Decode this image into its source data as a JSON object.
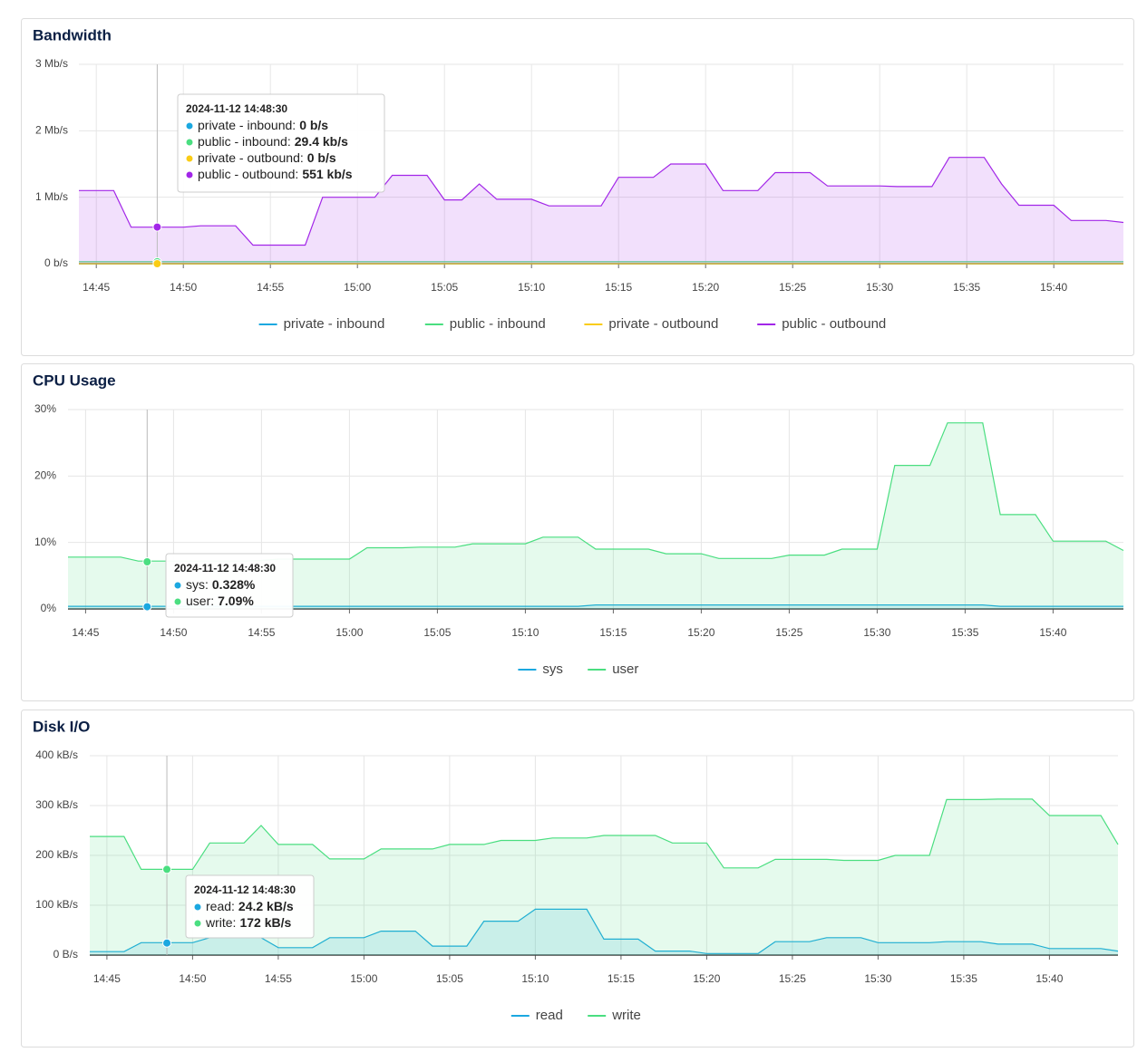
{
  "chart_data": [
    {
      "type": "line",
      "title": "Bandwidth",
      "x": [
        "14:44",
        "14:45",
        "14:46",
        "14:47",
        "14:48",
        "14:49",
        "14:50",
        "14:51",
        "14:52",
        "14:53",
        "14:54",
        "14:55",
        "14:56",
        "14:57",
        "14:58",
        "14:59",
        "15:00",
        "15:01",
        "15:02",
        "15:03",
        "15:04",
        "15:05",
        "15:06",
        "15:07",
        "15:08",
        "15:09",
        "15:10",
        "15:11",
        "15:12",
        "15:13",
        "15:14",
        "15:15",
        "15:16",
        "15:17",
        "15:18",
        "15:19",
        "15:20",
        "15:21",
        "15:22",
        "15:23",
        "15:24",
        "15:25",
        "15:26",
        "15:27",
        "15:28",
        "15:29",
        "15:30",
        "15:31",
        "15:32",
        "15:33",
        "15:34",
        "15:35",
        "15:36",
        "15:37",
        "15:38",
        "15:39",
        "15:40",
        "15:41",
        "15:42",
        "15:43",
        "15:44"
      ],
      "xlim": [
        "14:44",
        "15:44"
      ],
      "xticks": [
        "14:45",
        "14:50",
        "14:55",
        "15:00",
        "15:05",
        "15:10",
        "15:15",
        "15:20",
        "15:25",
        "15:30",
        "15:35",
        "15:40"
      ],
      "ylim": [
        0,
        3
      ],
      "yticks": [
        {
          "value": 0,
          "label": "0 b/s"
        },
        {
          "value": 1,
          "label": "1 Mb/s"
        },
        {
          "value": 2,
          "label": "2 Mb/s"
        },
        {
          "value": 3,
          "label": "3 Mb/s"
        }
      ],
      "grid": true,
      "series": [
        {
          "name": "private - inbound",
          "color": "#1ba8e0",
          "values": [
            0,
            0,
            0,
            0,
            0,
            0,
            0,
            0,
            0,
            0,
            0,
            0,
            0,
            0,
            0,
            0,
            0,
            0,
            0,
            0,
            0,
            0,
            0,
            0,
            0,
            0,
            0,
            0,
            0,
            0,
            0,
            0,
            0,
            0,
            0,
            0,
            0,
            0,
            0,
            0,
            0,
            0,
            0,
            0,
            0,
            0,
            0,
            0,
            0,
            0,
            0,
            0,
            0,
            0,
            0,
            0,
            0,
            0,
            0,
            0,
            0
          ]
        },
        {
          "name": "public - inbound",
          "color": "#4ade80",
          "values": [
            0.03,
            0.03,
            0.03,
            0.03,
            0.03,
            0.03,
            0.03,
            0.03,
            0.03,
            0.03,
            0.03,
            0.03,
            0.03,
            0.03,
            0.03,
            0.03,
            0.03,
            0.03,
            0.03,
            0.03,
            0.03,
            0.03,
            0.03,
            0.03,
            0.03,
            0.03,
            0.03,
            0.03,
            0.03,
            0.03,
            0.03,
            0.03,
            0.03,
            0.03,
            0.03,
            0.03,
            0.03,
            0.03,
            0.03,
            0.03,
            0.03,
            0.03,
            0.03,
            0.03,
            0.03,
            0.03,
            0.03,
            0.03,
            0.03,
            0.03,
            0.03,
            0.03,
            0.03,
            0.03,
            0.03,
            0.03,
            0.03,
            0.03,
            0.03,
            0.03,
            0.03
          ]
        },
        {
          "name": "private - outbound",
          "color": "#facc15",
          "values": [
            0,
            0,
            0,
            0,
            0,
            0,
            0,
            0,
            0,
            0,
            0,
            0,
            0,
            0,
            0,
            0,
            0,
            0,
            0,
            0,
            0,
            0,
            0,
            0,
            0,
            0,
            0,
            0,
            0,
            0,
            0,
            0,
            0,
            0,
            0,
            0,
            0,
            0,
            0,
            0,
            0,
            0,
            0,
            0,
            0,
            0,
            0,
            0,
            0,
            0,
            0,
            0,
            0,
            0,
            0,
            0,
            0,
            0,
            0,
            0,
            0
          ]
        },
        {
          "name": "public - outbound",
          "color": "#a226e8",
          "values": [
            1.1,
            1.1,
            1.1,
            0.55,
            0.55,
            0.55,
            0.55,
            0.57,
            0.57,
            0.57,
            0.28,
            0.28,
            0.28,
            0.28,
            1.0,
            1.0,
            1.0,
            1.0,
            1.33,
            1.33,
            1.33,
            0.96,
            0.96,
            1.2,
            0.97,
            0.97,
            0.97,
            0.87,
            0.87,
            0.87,
            0.87,
            1.3,
            1.3,
            1.3,
            1.5,
            1.5,
            1.5,
            1.1,
            1.1,
            1.1,
            1.37,
            1.37,
            1.37,
            1.17,
            1.17,
            1.17,
            1.17,
            1.16,
            1.16,
            1.16,
            1.6,
            1.6,
            1.6,
            1.2,
            0.88,
            0.88,
            0.88,
            0.65,
            0.65,
            0.65,
            0.62
          ]
        }
      ],
      "tooltip": {
        "time": "2024-11-12 14:48:30",
        "entries": [
          {
            "label": "private - inbound:",
            "value": 0,
            "value_label": "0 b/s"
          },
          {
            "label": "public - inbound:",
            "value": 0.0294,
            "value_label": "29.4 kb/s"
          },
          {
            "label": "private - outbound:",
            "value": 0,
            "value_label": "0 b/s"
          },
          {
            "label": "public - outbound:",
            "value": 0.551,
            "value_label": "551 kb/s"
          }
        ]
      }
    },
    {
      "type": "line",
      "title": "CPU Usage",
      "x": [
        "14:44",
        "14:45",
        "14:46",
        "14:47",
        "14:48",
        "14:49",
        "14:50",
        "14:51",
        "14:52",
        "14:53",
        "14:54",
        "14:55",
        "14:56",
        "14:57",
        "14:58",
        "14:59",
        "15:00",
        "15:01",
        "15:02",
        "15:03",
        "15:04",
        "15:05",
        "15:06",
        "15:07",
        "15:08",
        "15:09",
        "15:10",
        "15:11",
        "15:12",
        "15:13",
        "15:14",
        "15:15",
        "15:16",
        "15:17",
        "15:18",
        "15:19",
        "15:20",
        "15:21",
        "15:22",
        "15:23",
        "15:24",
        "15:25",
        "15:26",
        "15:27",
        "15:28",
        "15:29",
        "15:30",
        "15:31",
        "15:32",
        "15:33",
        "15:34",
        "15:35",
        "15:36",
        "15:37",
        "15:38",
        "15:39",
        "15:40",
        "15:41",
        "15:42",
        "15:43",
        "15:44"
      ],
      "xlim": [
        "14:44",
        "15:44"
      ],
      "xticks": [
        "14:45",
        "14:50",
        "14:55",
        "15:00",
        "15:05",
        "15:10",
        "15:15",
        "15:20",
        "15:25",
        "15:30",
        "15:35",
        "15:40"
      ],
      "ylim": [
        0,
        30
      ],
      "yticks": [
        {
          "value": 0,
          "label": "0%"
        },
        {
          "value": 10,
          "label": "10%"
        },
        {
          "value": 20,
          "label": "20%"
        },
        {
          "value": 30,
          "label": "30%"
        }
      ],
      "grid": true,
      "series": [
        {
          "name": "sys",
          "color": "#1ba8e0",
          "values": [
            0.4,
            0.4,
            0.4,
            0.4,
            0.4,
            0.4,
            0.4,
            0.4,
            0.4,
            0.4,
            0.4,
            0.4,
            0.4,
            0.4,
            0.4,
            0.4,
            0.4,
            0.4,
            0.4,
            0.4,
            0.4,
            0.4,
            0.4,
            0.4,
            0.4,
            0.4,
            0.4,
            0.4,
            0.4,
            0.4,
            0.6,
            0.6,
            0.6,
            0.6,
            0.6,
            0.6,
            0.6,
            0.6,
            0.6,
            0.6,
            0.6,
            0.6,
            0.6,
            0.6,
            0.6,
            0.6,
            0.6,
            0.6,
            0.6,
            0.6,
            0.6,
            0.6,
            0.6,
            0.4,
            0.4,
            0.4,
            0.4,
            0.4,
            0.4,
            0.4,
            0.4
          ]
        },
        {
          "name": "user",
          "color": "#4ade80",
          "values": [
            7.8,
            7.8,
            7.8,
            7.8,
            7.2,
            7.2,
            7.2,
            7.2,
            7.2,
            7.2,
            7.2,
            7.3,
            7.5,
            7.5,
            7.5,
            7.5,
            7.5,
            9.2,
            9.2,
            9.2,
            9.3,
            9.3,
            9.3,
            9.8,
            9.8,
            9.8,
            9.8,
            10.8,
            10.8,
            10.8,
            9.0,
            9.0,
            9.0,
            9.0,
            8.3,
            8.3,
            8.3,
            7.6,
            7.6,
            7.6,
            7.6,
            8.1,
            8.1,
            8.1,
            9.0,
            9.0,
            9.0,
            21.6,
            21.6,
            21.6,
            28,
            28,
            28,
            14.2,
            14.2,
            14.2,
            10.2,
            10.2,
            10.2,
            10.2,
            8.8
          ]
        }
      ],
      "tooltip": {
        "time": "2024-11-12 14:48:30",
        "entries": [
          {
            "label": "sys:",
            "value": 0.328,
            "value_label": "0.328%"
          },
          {
            "label": "user:",
            "value": 7.09,
            "value_label": "7.09%"
          }
        ]
      }
    },
    {
      "type": "line",
      "title": "Disk I/O",
      "x": [
        "14:44",
        "14:45",
        "14:46",
        "14:47",
        "14:48",
        "14:49",
        "14:50",
        "14:51",
        "14:52",
        "14:53",
        "14:54",
        "14:55",
        "14:56",
        "14:57",
        "14:58",
        "14:59",
        "15:00",
        "15:01",
        "15:02",
        "15:03",
        "15:04",
        "15:05",
        "15:06",
        "15:07",
        "15:08",
        "15:09",
        "15:10",
        "15:11",
        "15:12",
        "15:13",
        "15:14",
        "15:15",
        "15:16",
        "15:17",
        "15:18",
        "15:19",
        "15:20",
        "15:21",
        "15:22",
        "15:23",
        "15:24",
        "15:25",
        "15:26",
        "15:27",
        "15:28",
        "15:29",
        "15:30",
        "15:31",
        "15:32",
        "15:33",
        "15:34",
        "15:35",
        "15:36",
        "15:37",
        "15:38",
        "15:39",
        "15:40",
        "15:41",
        "15:42",
        "15:43",
        "15:44"
      ],
      "xlim": [
        "14:44",
        "15:44"
      ],
      "xticks": [
        "14:45",
        "14:50",
        "14:55",
        "15:00",
        "15:05",
        "15:10",
        "15:15",
        "15:20",
        "15:25",
        "15:30",
        "15:35",
        "15:40"
      ],
      "ylim": [
        0,
        400
      ],
      "yticks": [
        {
          "value": 0,
          "label": "0 B/s"
        },
        {
          "value": 100,
          "label": "100 kB/s"
        },
        {
          "value": 200,
          "label": "200 kB/s"
        },
        {
          "value": 300,
          "label": "300 kB/s"
        },
        {
          "value": 400,
          "label": "400 kB/s"
        }
      ],
      "grid": true,
      "series": [
        {
          "name": "read",
          "color": "#1ba8e0",
          "values": [
            7,
            7,
            7,
            25,
            25,
            25,
            25,
            35,
            35,
            35,
            35,
            15,
            15,
            15,
            35,
            35,
            35,
            48,
            48,
            48,
            18,
            18,
            18,
            68,
            68,
            68,
            92,
            92,
            92,
            92,
            32,
            32,
            32,
            8,
            8,
            8,
            3,
            3,
            3,
            3,
            27,
            27,
            27,
            35,
            35,
            35,
            25,
            25,
            25,
            25,
            27,
            27,
            27,
            22,
            22,
            22,
            13,
            13,
            13,
            13,
            8
          ]
        },
        {
          "name": "write",
          "color": "#4ade80",
          "values": [
            238,
            238,
            238,
            172,
            172,
            172,
            172,
            225,
            225,
            225,
            260,
            222,
            222,
            222,
            193,
            193,
            193,
            213,
            213,
            213,
            213,
            222,
            222,
            222,
            230,
            230,
            230,
            235,
            235,
            235,
            240,
            240,
            240,
            240,
            225,
            225,
            225,
            175,
            175,
            175,
            192,
            192,
            192,
            192,
            190,
            190,
            190,
            200,
            200,
            200,
            312,
            312,
            312,
            313,
            313,
            313,
            280,
            280,
            280,
            280,
            222
          ]
        }
      ],
      "tooltip": {
        "time": "2024-11-12 14:48:30",
        "entries": [
          {
            "label": "read:",
            "value": 24.2,
            "value_label": "24.2 kB/s"
          },
          {
            "label": "write:",
            "value": 172,
            "value_label": "172 kB/s"
          }
        ]
      }
    }
  ]
}
